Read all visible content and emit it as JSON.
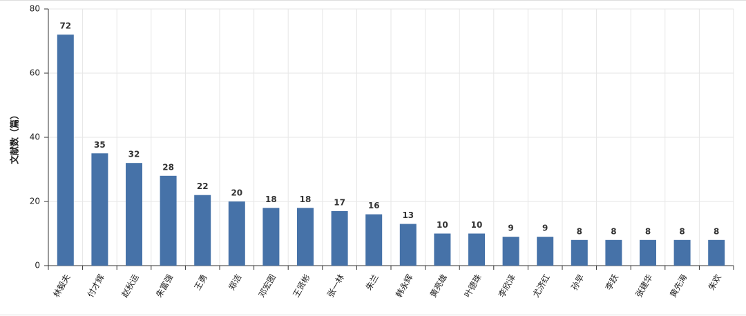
{
  "chart_data": {
    "type": "bar",
    "y_label": "文献数（篇）",
    "categories": [
      "林毅夫",
      "付才辉",
      "赵秋运",
      "朱富强",
      "王勇",
      "郑洁",
      "邓宏图",
      "王贤彬",
      "张一林",
      "朱兰",
      "韩永辉",
      "黄亮雄",
      "叶德珠",
      "李欣泽",
      "尤济红",
      "孙早",
      "李跃",
      "张建华",
      "黄先海",
      "朱欢"
    ],
    "values": [
      72,
      35,
      32,
      28,
      22,
      20,
      18,
      18,
      17,
      16,
      13,
      10,
      10,
      9,
      9,
      8,
      8,
      8,
      8,
      8
    ],
    "color": "#4672a8",
    "ylim": [
      0,
      80
    ],
    "yticks": [
      0,
      20,
      40,
      60,
      80
    ],
    "grid": true
  }
}
